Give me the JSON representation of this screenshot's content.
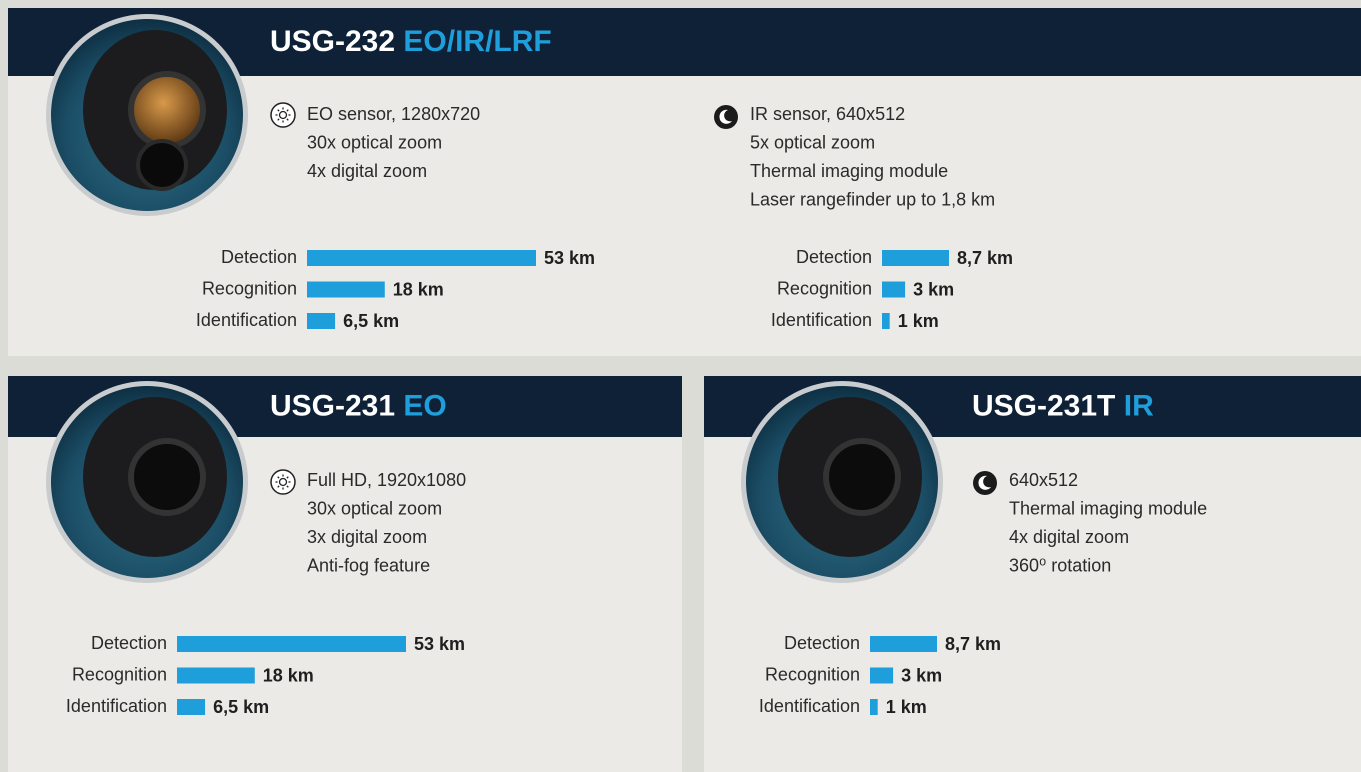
{
  "products": [
    {
      "model": "USG-232",
      "suffix": "EO/IR/LRF",
      "sensors": [
        {
          "lines": [
            "EO sensor, 1280x720",
            "30x optical zoom",
            "4x digital zoom"
          ],
          "ranges": [
            {
              "label": "Detection",
              "value": 53,
              "value_label": "53 km"
            },
            {
              "label": "Recognition",
              "value": 18,
              "value_label": "18 km"
            },
            {
              "label": "Identification",
              "value": 6.5,
              "value_label": "6,5 km"
            }
          ]
        },
        {
          "lines": [
            "IR sensor, 640x512",
            "5x optical zoom",
            "Thermal imaging module",
            "Laser rangefinder up to 1,8 km"
          ],
          "ranges": [
            {
              "label": "Detection",
              "value": 8.7,
              "value_label": "8,7 km"
            },
            {
              "label": "Recognition",
              "value": 3,
              "value_label": "3 km"
            },
            {
              "label": "Identification",
              "value": 1,
              "value_label": "1 km"
            }
          ]
        }
      ]
    },
    {
      "model": "USG-231",
      "suffix": "EO",
      "sensors": [
        {
          "lines": [
            "Full HD, 1920x1080",
            "30x optical zoom",
            "3x digital zoom",
            "Anti-fog feature"
          ],
          "ranges": [
            {
              "label": "Detection",
              "value": 53,
              "value_label": "53 km"
            },
            {
              "label": "Recognition",
              "value": 18,
              "value_label": "18 km"
            },
            {
              "label": "Identification",
              "value": 6.5,
              "value_label": "6,5 km"
            }
          ]
        }
      ]
    },
    {
      "model": "USG-231T",
      "suffix": "IR",
      "sensors": [
        {
          "lines": [
            "640x512",
            "Thermal imaging module",
            "4x digital zoom",
            "360⁰ rotation"
          ],
          "ranges": [
            {
              "label": "Detection",
              "value": 8.7,
              "value_label": "8,7 km"
            },
            {
              "label": "Recognition",
              "value": 3,
              "value_label": "3 km"
            },
            {
              "label": "Identification",
              "value": 1,
              "value_label": "1 km"
            }
          ]
        }
      ]
    }
  ]
}
